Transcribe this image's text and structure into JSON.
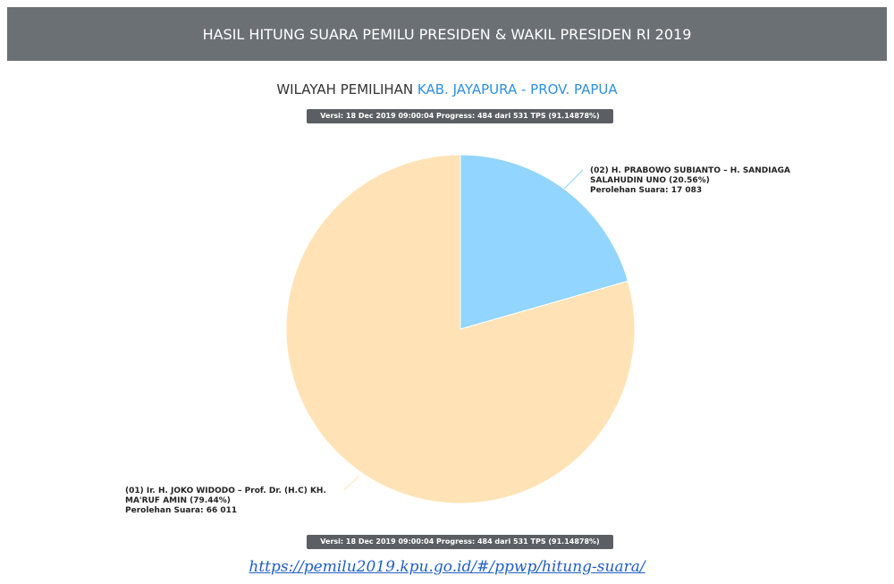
{
  "header": {
    "title": "HASIL HITUNG SUARA PEMILU PRESIDEN & WAKIL PRESIDEN RI 2019"
  },
  "region": {
    "prefix": "WILAYAH PEMILIHAN",
    "name": "KAB. JAYAPURA - PROV. PAPUA"
  },
  "version_badge": "Versi: 18 Dec 2019 09:00:04 Progress: 484 dari 531 TPS (91.14878%)",
  "chart_data": {
    "type": "pie",
    "categories": [
      "(01) Ir. H. JOKO WIDODO – Prof. Dr. (H.C) KH. MA'RUF AMIN",
      "(02) H. PRABOWO SUBIANTO – H. SANDIAGA SALAHUDIN UNO"
    ],
    "values": [
      79.44,
      20.56
    ],
    "value_labels": [
      "(79.44%)",
      "(20.56%)"
    ],
    "vote_labels": [
      "Perolehan Suara: 66 011",
      "Perolehan Suara: 17 083"
    ],
    "colors": [
      "#ffe3b6",
      "#92d5fe"
    ]
  },
  "footer": {
    "link": "https://pemilu2019.kpu.go.id/#/ppwp/hitung-suara/"
  }
}
